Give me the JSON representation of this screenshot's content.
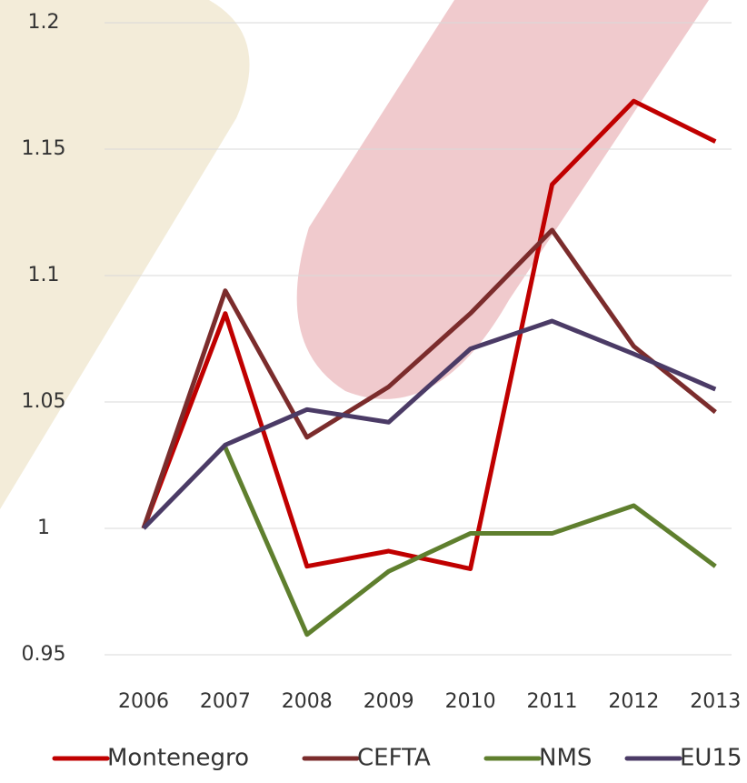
{
  "chart_data": {
    "type": "line",
    "x": [
      "2006",
      "2007",
      "2008",
      "2009",
      "2010",
      "2011",
      "2012",
      "2013"
    ],
    "series": [
      {
        "name": "Montenegro",
        "color": "#c00000",
        "values": [
          1.0,
          1.085,
          0.985,
          0.991,
          0.984,
          1.136,
          1.169,
          1.153
        ]
      },
      {
        "name": "CEFTA",
        "color": "#7b2c2c",
        "values": [
          1.0,
          1.094,
          1.036,
          1.056,
          1.085,
          1.118,
          1.072,
          1.046
        ]
      },
      {
        "name": "NMS",
        "color": "#5f7f2e",
        "values": [
          null,
          1.032,
          0.958,
          0.983,
          0.998,
          0.998,
          1.009,
          0.985
        ]
      },
      {
        "name": "EU15",
        "color": "#4b3b66",
        "values": [
          1.0,
          1.033,
          1.047,
          1.042,
          1.071,
          1.082,
          1.069,
          1.055
        ]
      }
    ],
    "ylim": [
      0.95,
      1.2
    ],
    "yticks": [
      0.95,
      1,
      1.05,
      1.1,
      1.15,
      1.2
    ],
    "grid": true,
    "legend": "bottom"
  }
}
